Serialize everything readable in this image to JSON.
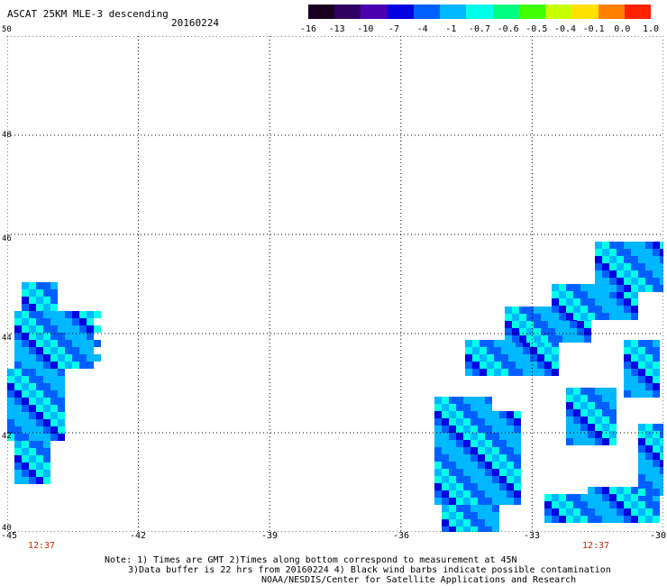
{
  "header": {
    "title": "ASCAT 25KM MLE-3 descending",
    "date": "20160224"
  },
  "colorbar": {
    "labels": [
      "-16",
      "-13",
      "-10",
      "-7",
      "-4",
      "-1",
      "-0.7",
      "-0.6",
      "-0.5",
      "-0.4",
      "-0.1",
      "0.0",
      "1.0"
    ],
    "colors": [
      "#1a0020",
      "#300060",
      "#4a00b0",
      "#0000e0",
      "#0060ff",
      "#00b8ff",
      "#00ffe8",
      "#00ff80",
      "#40ff00",
      "#c8ff00",
      "#ffe000",
      "#ff8000",
      "#ff2000"
    ]
  },
  "map": {
    "y_labels": [
      "50",
      "48",
      "46",
      "44",
      "42",
      "40"
    ],
    "x_labels": [
      "-45",
      "-42",
      "-39",
      "-36",
      "-33",
      "-30"
    ],
    "times": [
      "12:37",
      "12:37"
    ]
  },
  "notes": {
    "line1": "Note: 1) Times are GMT 2)Times along bottom correspond to measurement at 45N",
    "line2": "3)Data buffer is 22 hrs from 20160224 4) Black wind barbs indicate possible contamination",
    "line3": "NOAA/NESDIS/Center for Satellite Applications and Research"
  }
}
